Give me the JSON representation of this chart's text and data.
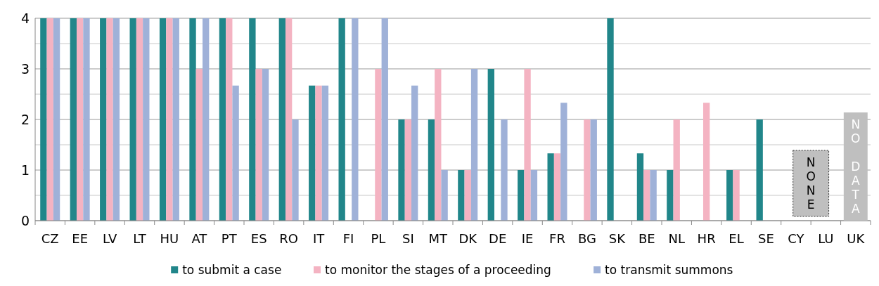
{
  "chart_data": {
    "type": "bar",
    "categories": [
      "CZ",
      "EE",
      "LV",
      "LT",
      "HU",
      "AT",
      "PT",
      "ES",
      "RO",
      "IT",
      "FI",
      "PL",
      "SI",
      "MT",
      "DK",
      "DE",
      "IE",
      "FR",
      "BG",
      "SK",
      "BE",
      "NL",
      "HR",
      "EL",
      "SE",
      "CY",
      "LU",
      "UK"
    ],
    "series": [
      {
        "name": "to submit a case",
        "color": "#21868a",
        "values": [
          4,
          4,
          4,
          4,
          4,
          4,
          4,
          4,
          4,
          2.67,
          4,
          null,
          2,
          2,
          1,
          3,
          1,
          1.33,
          null,
          4,
          1.33,
          1,
          null,
          1,
          2,
          null,
          null,
          null
        ]
      },
      {
        "name": "to monitor the stages of a proceeding",
        "color": "#f4b3c2",
        "values": [
          4,
          4,
          4,
          4,
          4,
          3,
          4,
          3,
          4,
          2.67,
          null,
          3,
          2,
          3,
          1,
          null,
          3,
          1.33,
          2,
          null,
          1,
          2,
          2.33,
          1,
          null,
          null,
          null,
          null
        ]
      },
      {
        "name": "to transmit summons",
        "color": "#9fb1d8",
        "values": [
          4,
          4,
          4,
          4,
          4,
          4,
          2.67,
          3,
          2,
          2.67,
          4,
          4,
          2.67,
          1,
          3,
          2,
          1,
          2.33,
          2,
          null,
          1,
          null,
          null,
          null,
          null,
          null,
          null,
          null
        ]
      }
    ],
    "ylim": [
      0,
      4
    ],
    "yticks": [
      0,
      {
        "value": 0.5,
        "label": null
      },
      1,
      {
        "value": 1.5,
        "label": null
      },
      2,
      {
        "value": 2.5,
        "label": null
      },
      3,
      {
        "value": 3.5,
        "label": null
      },
      4
    ],
    "grid": true,
    "legend": "bottom",
    "annotations": [
      "NONE",
      "NO DATA"
    ]
  }
}
